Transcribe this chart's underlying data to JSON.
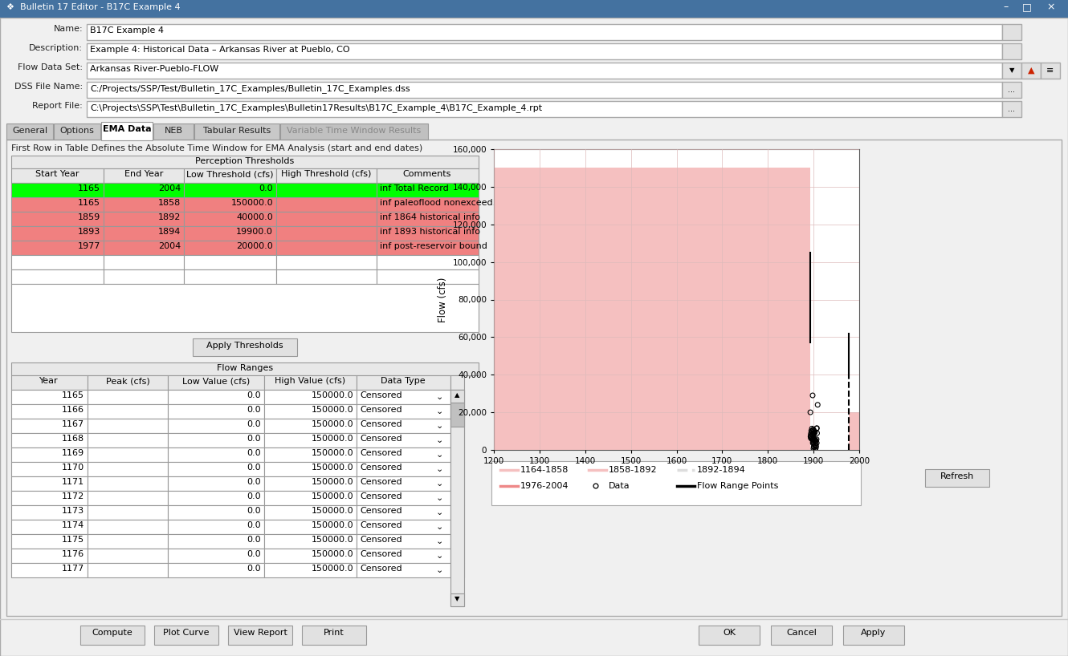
{
  "title": "Bulletin 17 Editor - B17C Example 4",
  "name_field": "B17C Example 4",
  "description_field": "Example 4: Historical Data – Arkansas River at Pueblo, CO",
  "flow_data_set": "Arkansas River-Pueblo-FLOW",
  "dss_file": "C:/Projects/SSP/Test/Bulletin_17C_Examples/Bulletin_17C_Examples.dss",
  "report_file": "C:\\Projects\\SSP\\Test\\Bulletin_17C_Examples\\Bulletin17Results\\B17C_Example_4\\B17C_Example_4.rpt",
  "tabs": [
    "General",
    "Options",
    "EMA Data",
    "NEB",
    "Tabular Results",
    "Variable Time Window Results"
  ],
  "active_tab": "EMA Data",
  "info_text": "First Row in Table Defines the Absolute Time Window for EMA Analysis (start and end dates)",
  "perception_header": "Perception Thresholds",
  "perception_cols": [
    "Start Year",
    "End Year",
    "Low Threshold (cfs)",
    "High Threshold (cfs)",
    "Comments"
  ],
  "perception_rows": [
    {
      "start": "1165",
      "end": "2004",
      "low": "0.0",
      "high": "",
      "comments": "inf Total Record",
      "color": "#00ff00"
    },
    {
      "start": "1165",
      "end": "1858",
      "low": "150000.0",
      "high": "",
      "comments": "inf paleoflood nonexceed...",
      "color": "#f08080"
    },
    {
      "start": "1859",
      "end": "1892",
      "low": "40000.0",
      "high": "",
      "comments": "inf 1864 historical info",
      "color": "#f08080"
    },
    {
      "start": "1893",
      "end": "1894",
      "low": "19900.0",
      "high": "",
      "comments": "inf 1893 historical info",
      "color": "#f08080"
    },
    {
      "start": "1977",
      "end": "2004",
      "low": "20000.0",
      "high": "",
      "comments": "inf post-reservoir bound",
      "color": "#f08080"
    }
  ],
  "flow_ranges_header": "Flow Ranges",
  "flow_cols": [
    "Year",
    "Peak (cfs)",
    "Low Value (cfs)",
    "High Value (cfs)",
    "Data Type"
  ],
  "flow_rows": [
    {
      "year": "1165",
      "peak": "",
      "low": "0.0",
      "high": "150000.0",
      "dtype": "Censored"
    },
    {
      "year": "1166",
      "peak": "",
      "low": "0.0",
      "high": "150000.0",
      "dtype": "Censored"
    },
    {
      "year": "1167",
      "peak": "",
      "low": "0.0",
      "high": "150000.0",
      "dtype": "Censored"
    },
    {
      "year": "1168",
      "peak": "",
      "low": "0.0",
      "high": "150000.0",
      "dtype": "Censored"
    },
    {
      "year": "1169",
      "peak": "",
      "low": "0.0",
      "high": "150000.0",
      "dtype": "Censored"
    },
    {
      "year": "1170",
      "peak": "",
      "low": "0.0",
      "high": "150000.0",
      "dtype": "Censored"
    },
    {
      "year": "1171",
      "peak": "",
      "low": "0.0",
      "high": "150000.0",
      "dtype": "Censored"
    },
    {
      "year": "1172",
      "peak": "",
      "low": "0.0",
      "high": "150000.0",
      "dtype": "Censored"
    },
    {
      "year": "1173",
      "peak": "",
      "low": "0.0",
      "high": "150000.0",
      "dtype": "Censored"
    },
    {
      "year": "1174",
      "peak": "",
      "low": "0.0",
      "high": "150000.0",
      "dtype": "Censored"
    },
    {
      "year": "1175",
      "peak": "",
      "low": "0.0",
      "high": "150000.0",
      "dtype": "Censored"
    },
    {
      "year": "1176",
      "peak": "",
      "low": "0.0",
      "high": "150000.0",
      "dtype": "Censored"
    },
    {
      "year": "1177",
      "peak": "",
      "low": "0.0",
      "high": "150000.0",
      "dtype": "Censored"
    }
  ],
  "plot_xlim": [
    1200,
    2000
  ],
  "plot_ylim": [
    0,
    160000
  ],
  "plot_yticks": [
    0,
    20000,
    40000,
    60000,
    80000,
    100000,
    120000,
    140000,
    160000
  ],
  "plot_xticks": [
    1200,
    1300,
    1400,
    1500,
    1600,
    1700,
    1800,
    1900,
    2000
  ],
  "plot_ylabel": "Flow (cfs)",
  "pink_color": "#f5c0c0",
  "bg_color": "#f0f0f0",
  "titlebar_color": "#4472a0",
  "button_color": "#e1e1e1",
  "header_cell_color": "#e8e8e8",
  "border_color": "#999999",
  "tab_active_color": "#ffffff",
  "tab_inactive_color": "#d4d4d4"
}
